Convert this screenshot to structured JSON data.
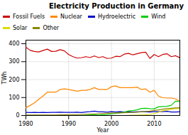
{
  "chart_data": {
    "type": "line",
    "title": "Electricity Production in Germany",
    "xlabel": "Year",
    "ylabel": "TWh",
    "x": [
      1980,
      1981,
      1982,
      1983,
      1984,
      1985,
      1986,
      1987,
      1988,
      1989,
      1990,
      1991,
      1992,
      1993,
      1994,
      1995,
      1996,
      1997,
      1998,
      1999,
      2000,
      2001,
      2002,
      2003,
      2004,
      2005,
      2006,
      2007,
      2008,
      2009,
      2010,
      2011,
      2012,
      2013,
      2014,
      2015,
      2016
    ],
    "series": [
      {
        "name": "Fossil Fuels",
        "color": "#cc0000",
        "values": [
          380,
          363,
          357,
          354,
          362,
          370,
          357,
          358,
          367,
          360,
          340,
          328,
          320,
          322,
          328,
          323,
          332,
          323,
          328,
          318,
          320,
          330,
          328,
          342,
          346,
          338,
          344,
          350,
          353,
          318,
          340,
          328,
          340,
          344,
          328,
          333,
          322
        ]
      },
      {
        "name": "Nuclear",
        "color": "#ff8800",
        "values": [
          43,
          56,
          70,
          90,
          108,
          130,
          130,
          130,
          145,
          148,
          145,
          140,
          135,
          140,
          140,
          145,
          155,
          145,
          145,
          145,
          160,
          165,
          155,
          155,
          155,
          155,
          158,
          145,
          148,
          130,
          140,
          108,
          99,
          97,
          97,
          92,
          80
        ]
      },
      {
        "name": "Hydroelectric",
        "color": "#0000cc",
        "values": [
          17,
          16,
          17,
          16,
          17,
          16,
          17,
          17,
          18,
          17,
          17,
          17,
          18,
          16,
          19,
          21,
          24,
          20,
          20,
          18,
          21,
          19,
          21,
          19,
          21,
          19,
          20,
          21,
          20,
          19,
          21,
          21,
          21,
          23,
          19,
          19,
          20
        ]
      },
      {
        "name": "Wind",
        "color": "#00cc00",
        "values": [
          0,
          0,
          0,
          0,
          0,
          0,
          0,
          0,
          0,
          0,
          0,
          1,
          1,
          1,
          2,
          3,
          4,
          3,
          4,
          5,
          9,
          11,
          15,
          18,
          25,
          27,
          31,
          39,
          40,
          38,
          37,
          48,
          50,
          51,
          57,
          80,
          78
        ]
      },
      {
        "name": "Solar",
        "color": "#dddd00",
        "values": [
          0,
          0,
          0,
          0,
          0,
          0,
          0,
          0,
          0,
          0,
          0,
          0,
          0,
          0,
          0,
          0,
          0,
          0,
          0,
          0,
          0,
          0,
          0,
          0,
          1,
          2,
          2,
          3,
          4,
          6,
          11,
          18,
          26,
          30,
          35,
          38,
          38
        ]
      },
      {
        "name": "Other",
        "color": "#888800",
        "values": [
          3,
          3,
          3,
          3,
          3,
          3,
          3,
          3,
          4,
          4,
          5,
          5,
          5,
          6,
          7,
          8,
          9,
          10,
          11,
          12,
          13,
          14,
          14,
          15,
          16,
          17,
          18,
          20,
          22,
          24,
          28,
          31,
          35,
          38,
          40,
          42,
          43
        ]
      }
    ],
    "xlim": [
      1980,
      2016
    ],
    "ylim": [
      0,
      420
    ],
    "xticks": [
      1980,
      1990,
      2000,
      2010
    ],
    "yticks": [
      0,
      100,
      200,
      300,
      400
    ],
    "grid": true,
    "legend": "upper left"
  }
}
